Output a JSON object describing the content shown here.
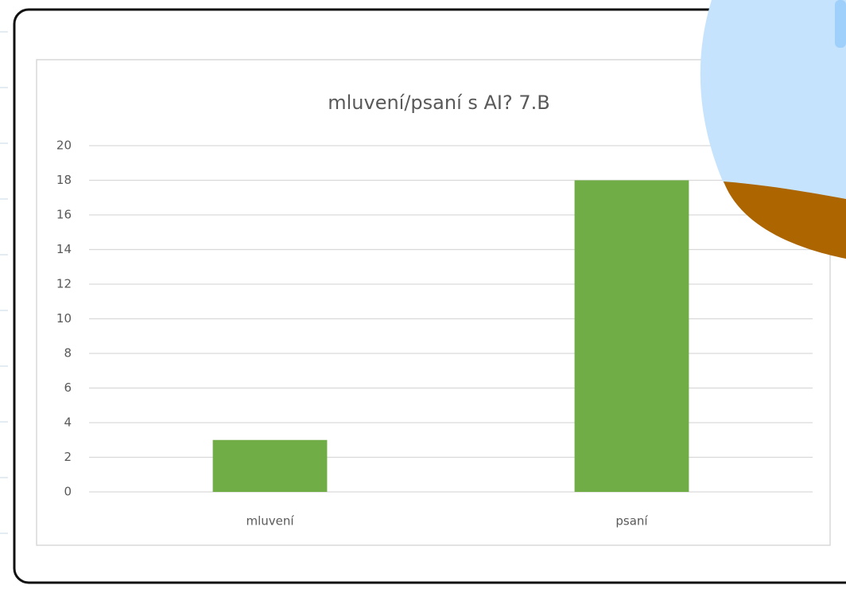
{
  "chart_data": {
    "type": "bar",
    "title": "mluvení/psaní s AI? 7.B",
    "categories": [
      "mluvení",
      "psaní"
    ],
    "values": [
      3,
      18
    ],
    "color": "#70ad47",
    "ylim": [
      0,
      20
    ],
    "yticks": [
      0,
      2,
      4,
      6,
      8,
      10,
      12,
      14,
      16,
      18,
      20
    ],
    "grid": true
  }
}
